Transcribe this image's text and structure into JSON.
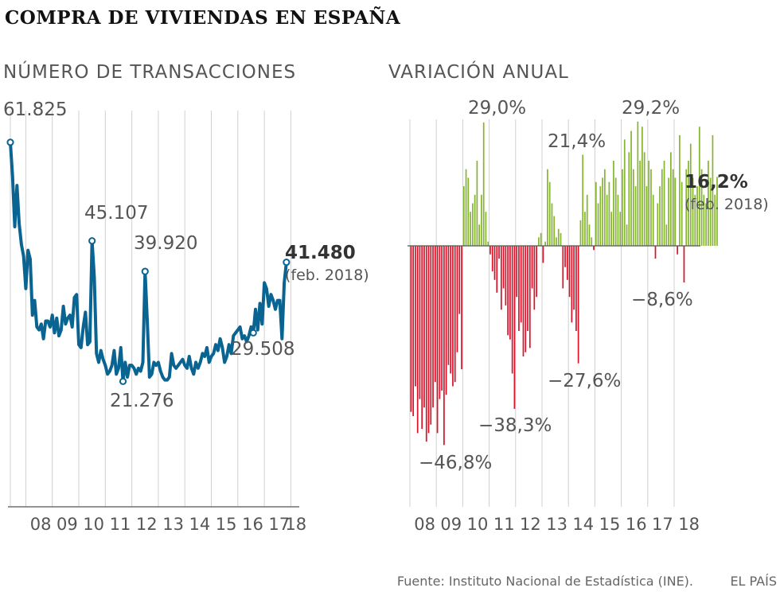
{
  "title": "COMPRA DE VIVIENDAS EN ESPAÑA",
  "source": "Fuente: Instituto Nacional de Estadística (INE).",
  "publisher": "EL PAÍS",
  "colors": {
    "line": "#0a6491",
    "positive": "#86b531",
    "negative": "#d7142a",
    "grid": "#d0d0d0",
    "axis": "#555555"
  },
  "chart_data": [
    {
      "type": "line",
      "title": "NÚMERO DE TRANSACCIONES",
      "xlabel": "",
      "ylabel": "",
      "ylim": [
        0,
        64500
      ],
      "x_ticks": [
        "08",
        "09",
        "10",
        "11",
        "12",
        "13",
        "14",
        "15",
        "16",
        "17",
        "18"
      ],
      "start": "2007-06",
      "series": [
        {
          "name": "Transacciones",
          "values": [
            61825,
            56000,
            47500,
            54500,
            48000,
            44500,
            42500,
            37000,
            43500,
            42000,
            32500,
            35000,
            30500,
            30000,
            31000,
            28500,
            31500,
            31500,
            30500,
            32500,
            29500,
            32000,
            29000,
            30000,
            34000,
            31000,
            32000,
            32500,
            30500,
            35500,
            36000,
            27500,
            27000,
            30500,
            33000,
            27500,
            28000,
            45107,
            39000,
            26000,
            24500,
            26500,
            25000,
            24000,
            22500,
            23000,
            24000,
            26500,
            22500,
            23500,
            27000,
            21276,
            24500,
            22000,
            24000,
            24000,
            23500,
            22500,
            23500,
            23000,
            24500,
            39920,
            31500,
            22000,
            22500,
            24500,
            24000,
            24500,
            23000,
            22000,
            21500,
            21500,
            22000,
            26000,
            24000,
            23500,
            24000,
            24500,
            25000,
            24000,
            23500,
            25500,
            23500,
            22500,
            24500,
            23500,
            24500,
            26000,
            25500,
            27000,
            24500,
            25500,
            26000,
            27500,
            26500,
            28500,
            27000,
            24500,
            25500,
            27500,
            26000,
            29000,
            29500,
            30000,
            30500,
            28500,
            29000,
            28000,
            29000,
            30500,
            29508,
            33500,
            30000,
            34500,
            31000,
            38000,
            37000,
            34000,
            36000,
            35000,
            33500,
            35000,
            35000,
            28500,
            38000,
            41480
          ],
          "annotations": [
            {
              "label": "61.825",
              "value": 61825
            },
            {
              "label": "45.107",
              "value": 45107
            },
            {
              "label": "21.276",
              "value": 21276
            },
            {
              "label": "39.920",
              "value": 39920
            },
            {
              "label": "29.508",
              "value": 29508
            },
            {
              "label": "41.480",
              "value": 41480,
              "note": "(feb. 2018)"
            }
          ]
        }
      ]
    },
    {
      "type": "bar",
      "title": "VARIACIÓN ANUAL",
      "xlabel": "",
      "ylabel": "%",
      "ylim": [
        -60,
        30
      ],
      "x_ticks": [
        "08",
        "09",
        "10",
        "11",
        "12",
        "13",
        "14",
        "15",
        "16",
        "17",
        "18"
      ],
      "start": "2008-01",
      "series": [
        {
          "name": "Variación anual (%)",
          "values": [
            -39,
            -40,
            -33,
            -44,
            -36,
            -43,
            -38,
            -46,
            -44,
            -42,
            -38,
            -32,
            -44,
            -36,
            -34,
            -46.8,
            -35,
            -28,
            -30,
            -33,
            -32,
            -25,
            -16,
            -29,
            14,
            18,
            16,
            8,
            10,
            12,
            20,
            5,
            12,
            29.0,
            8,
            1,
            -2,
            -6,
            -8,
            -11,
            -3,
            -15,
            -10,
            -14,
            -21,
            -22,
            -30,
            -38.3,
            -12,
            -20,
            -18,
            -26,
            -25,
            -20,
            -24,
            -10,
            -15,
            -12,
            2,
            3,
            -4,
            1,
            18,
            15,
            10,
            7,
            2,
            4,
            3,
            -10,
            -5,
            -8,
            -12,
            -18,
            -15,
            -20,
            -27.6,
            6,
            21.4,
            8,
            12,
            5,
            2,
            -1,
            15,
            10,
            14,
            16,
            18,
            12,
            15,
            8,
            20,
            16,
            12,
            8,
            18,
            25,
            5,
            22,
            27,
            18,
            14,
            29.2,
            20,
            28,
            22,
            14,
            20,
            18,
            12,
            -3,
            10,
            14,
            18,
            20,
            5,
            16,
            22,
            18,
            16,
            -2,
            26,
            15,
            -8.6,
            18,
            20,
            24,
            16,
            12,
            14,
            28,
            18,
            12,
            10,
            20,
            16,
            26,
            12,
            16.2
          ],
          "annotations": [
            {
              "label": "29,0%",
              "value": 29.0
            },
            {
              "label": "−46,8%",
              "value": -46.8
            },
            {
              "label": "−38,3%",
              "value": -38.3
            },
            {
              "label": "21,4%",
              "value": 21.4
            },
            {
              "label": "−27,6%",
              "value": -27.6
            },
            {
              "label": "29,2%",
              "value": 29.2
            },
            {
              "label": "−8,6%",
              "value": -8.6
            },
            {
              "label": "16,2%",
              "value": 16.2,
              "note": "(feb. 2018)"
            }
          ]
        }
      ]
    }
  ]
}
